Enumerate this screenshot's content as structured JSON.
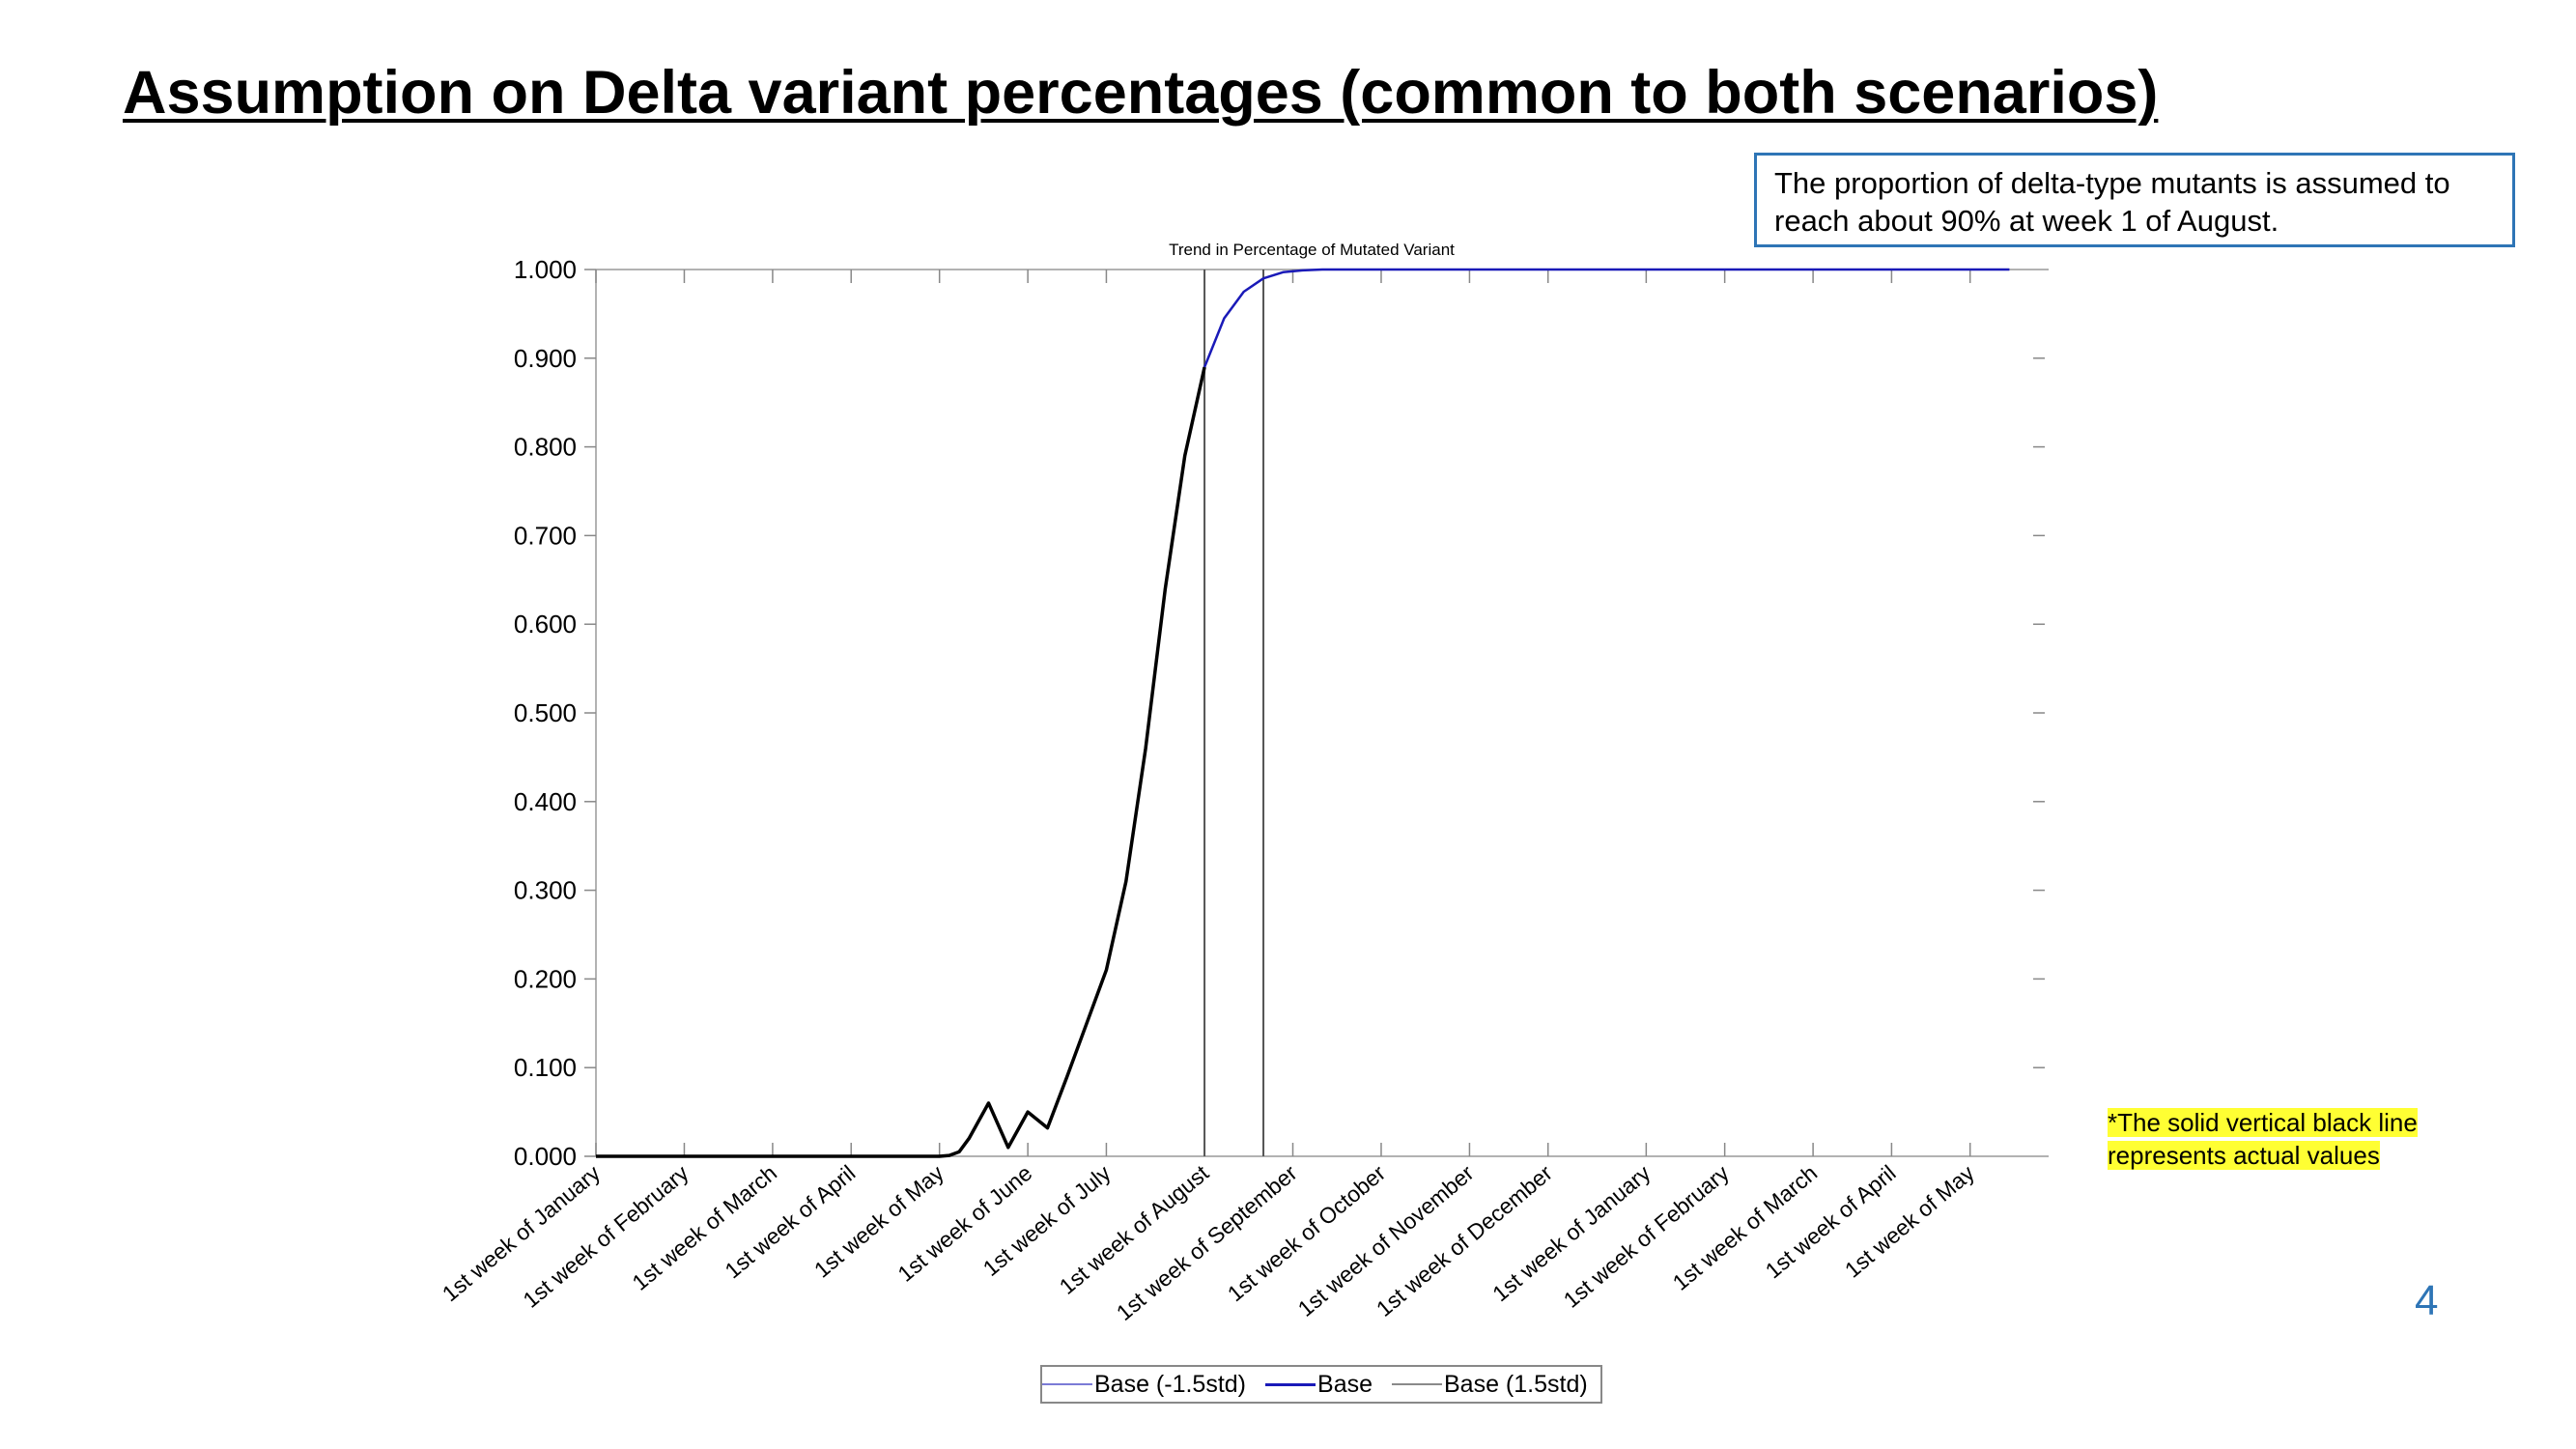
{
  "slide": {
    "title": "Assumption on Delta variant percentages (common to both scenarios)",
    "callout": "The proportion of delta-type mutants is assumed to reach about 90% at week 1 of August.",
    "footnote_star": "*",
    "footnote": "The solid vertical black line represents actual values",
    "page_number": "4"
  },
  "legend": {
    "items": [
      {
        "label": "Base (-1.5std)",
        "color": "#7b7bd6"
      },
      {
        "label": "Base",
        "color": "#1a1ab8"
      },
      {
        "label": "Base (1.5std)",
        "color": "#8a8a8a"
      }
    ]
  },
  "chart_data": {
    "type": "line",
    "title": "Trend in Percentage of Mutated Variant",
    "xlabel": "",
    "ylabel": "",
    "ylim": [
      0,
      1
    ],
    "yticks": [
      "0.000",
      "0.100",
      "0.200",
      "0.300",
      "0.400",
      "0.500",
      "0.600",
      "0.700",
      "0.800",
      "0.900",
      "1.000"
    ],
    "x_unit": "week",
    "xlim": [
      0,
      74
    ],
    "categories": [
      "1st week of January",
      "1st week of February",
      "1st week of March",
      "1st week of April",
      "1st week of May",
      "1st week of June",
      "1st week of July",
      "1st week of August",
      "1st week of September",
      "1st week of October",
      "1st week of November",
      "1st week of December",
      "1st week of January",
      "1st week of February",
      "1st week of March",
      "1st week of April",
      "1st week of May"
    ],
    "category_weeks": [
      0,
      4.5,
      9,
      13,
      17.5,
      22,
      26,
      31,
      35.5,
      40,
      44.5,
      48.5,
      53.5,
      57.5,
      62,
      66,
      70
    ],
    "actual_line_weeks": [
      31,
      34
    ],
    "series": [
      {
        "name": "Actual",
        "color": "#000000",
        "x": [
          0,
          4.5,
          9,
          13,
          17.5,
          18,
          18.5,
          19,
          20,
          21,
          22,
          23,
          24,
          25,
          26,
          27,
          28,
          29,
          30,
          31
        ],
        "y": [
          0,
          0,
          0,
          0,
          0,
          0.001,
          0.005,
          0.02,
          0.06,
          0.01,
          0.05,
          0.032,
          0.09,
          0.15,
          0.21,
          0.31,
          0.46,
          0.64,
          0.79,
          0.89
        ]
      },
      {
        "name": "Base",
        "color": "#1a1ab8",
        "x": [
          31,
          32,
          33,
          34,
          35,
          36,
          37,
          40,
          44.5,
          48.5,
          53.5,
          57.5,
          62,
          66,
          70,
          72
        ],
        "y": [
          0.89,
          0.945,
          0.975,
          0.99,
          0.997,
          0.999,
          1.0,
          1.0,
          1.0,
          1.0,
          1.0,
          1.0,
          1.0,
          1.0,
          1.0,
          1.0
        ]
      }
    ]
  }
}
